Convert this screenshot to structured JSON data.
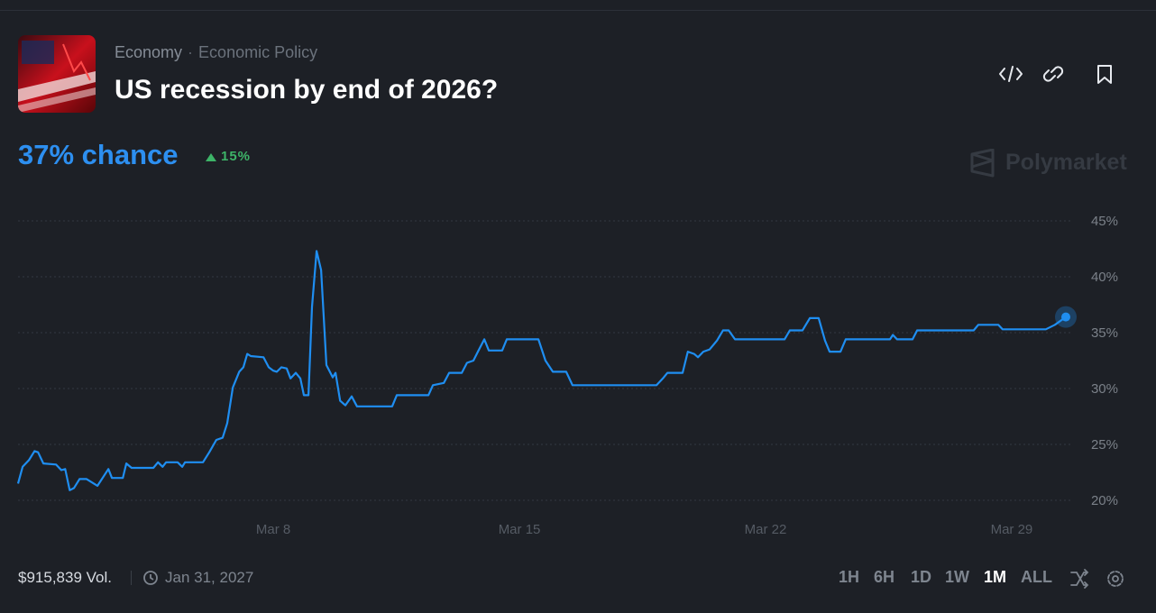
{
  "header": {
    "category": "Economy",
    "subcategory": "Economic Policy",
    "title": "US recession by end of 2026?",
    "chance": "37% chance",
    "change": "15%",
    "brand": "Polymarket"
  },
  "footer": {
    "volume": "$915,839 Vol.",
    "end_date": "Jan 31, 2027",
    "ranges": [
      "1H",
      "6H",
      "1D",
      "1W",
      "1M",
      "ALL"
    ]
  },
  "chart_data": {
    "type": "line",
    "color": "#1f8ef1",
    "grid": true,
    "x": [
      0.74,
      0.87,
      1.05,
      1.21,
      1.31,
      1.46,
      1.82,
      1.97,
      2.08,
      2.21,
      2.33,
      2.49,
      2.69,
      3.0,
      3.31,
      3.41,
      3.72,
      3.82,
      3.97,
      4.59,
      4.72,
      4.85,
      4.95,
      5.28,
      5.41,
      5.49,
      6.0,
      6.18,
      6.38,
      6.56,
      6.69,
      6.85,
      7.03,
      7.15,
      7.26,
      7.36,
      7.72,
      7.87,
      8.0,
      8.1,
      8.23,
      8.38,
      8.49,
      8.64,
      8.77,
      8.87,
      9.0,
      9.1,
      9.23,
      9.36,
      9.51,
      9.69,
      9.77,
      9.9,
      10.05,
      10.23,
      10.38,
      11.38,
      11.51,
      12.41,
      12.54,
      12.85,
      13.0,
      13.36,
      13.51,
      13.69,
      13.82,
      14.0,
      14.13,
      14.51,
      14.64,
      15.54,
      15.74,
      15.95,
      16.33,
      16.51,
      18.9,
      19.08,
      19.21,
      19.64,
      19.79,
      19.97,
      20.08,
      20.23,
      20.41,
      20.62,
      20.79,
      20.95,
      21.13,
      22.54,
      22.69,
      23.05,
      23.26,
      23.51,
      23.69,
      23.82,
      24.13,
      24.28,
      25.54,
      25.62,
      25.74,
      26.18,
      26.31,
      27.92,
      28.05,
      28.62,
      28.74,
      29.97,
      30.23,
      30.54
    ],
    "values": [
      21.5,
      23.0,
      23.6,
      24.4,
      24.3,
      23.3,
      23.2,
      22.7,
      22.8,
      20.9,
      21.1,
      21.9,
      21.9,
      21.3,
      22.8,
      22.0,
      22.0,
      23.3,
      22.9,
      22.9,
      23.4,
      23.0,
      23.4,
      23.4,
      23.0,
      23.4,
      23.4,
      24.3,
      25.4,
      25.6,
      26.9,
      30.1,
      31.5,
      31.9,
      33.1,
      32.9,
      32.8,
      31.9,
      31.6,
      31.5,
      31.9,
      31.8,
      30.9,
      31.4,
      30.9,
      29.4,
      29.4,
      37.3,
      42.3,
      40.6,
      32.1,
      31.0,
      31.4,
      28.9,
      28.5,
      29.3,
      28.4,
      28.4,
      29.4,
      29.4,
      30.3,
      30.5,
      31.4,
      31.4,
      32.3,
      32.5,
      33.3,
      34.4,
      33.4,
      33.4,
      34.4,
      34.4,
      32.5,
      31.5,
      31.5,
      30.3,
      30.3,
      30.9,
      31.4,
      31.4,
      33.3,
      33.1,
      32.8,
      33.3,
      33.5,
      34.3,
      35.2,
      35.2,
      34.4,
      34.4,
      35.2,
      35.2,
      36.3,
      36.3,
      34.3,
      33.3,
      33.3,
      34.4,
      34.4,
      34.8,
      34.4,
      34.4,
      35.2,
      35.2,
      35.7,
      35.7,
      35.3,
      35.3,
      35.7,
      36.4
    ],
    "xlim": [
      0.74,
      30.54
    ],
    "xticks": [
      {
        "value": 8,
        "label": "Mar 8"
      },
      {
        "value": 15,
        "label": "Mar 15"
      },
      {
        "value": 22,
        "label": "Mar 22"
      },
      {
        "value": 29,
        "label": "Mar 29"
      }
    ],
    "ylim": [
      20,
      45
    ],
    "yticks": [
      {
        "value": 20,
        "label": "20%"
      },
      {
        "value": 25,
        "label": "25%"
      },
      {
        "value": 30,
        "label": "30%"
      },
      {
        "value": 35,
        "label": "35%"
      },
      {
        "value": 40,
        "label": "40%"
      },
      {
        "value": 45,
        "label": "45%"
      }
    ]
  }
}
